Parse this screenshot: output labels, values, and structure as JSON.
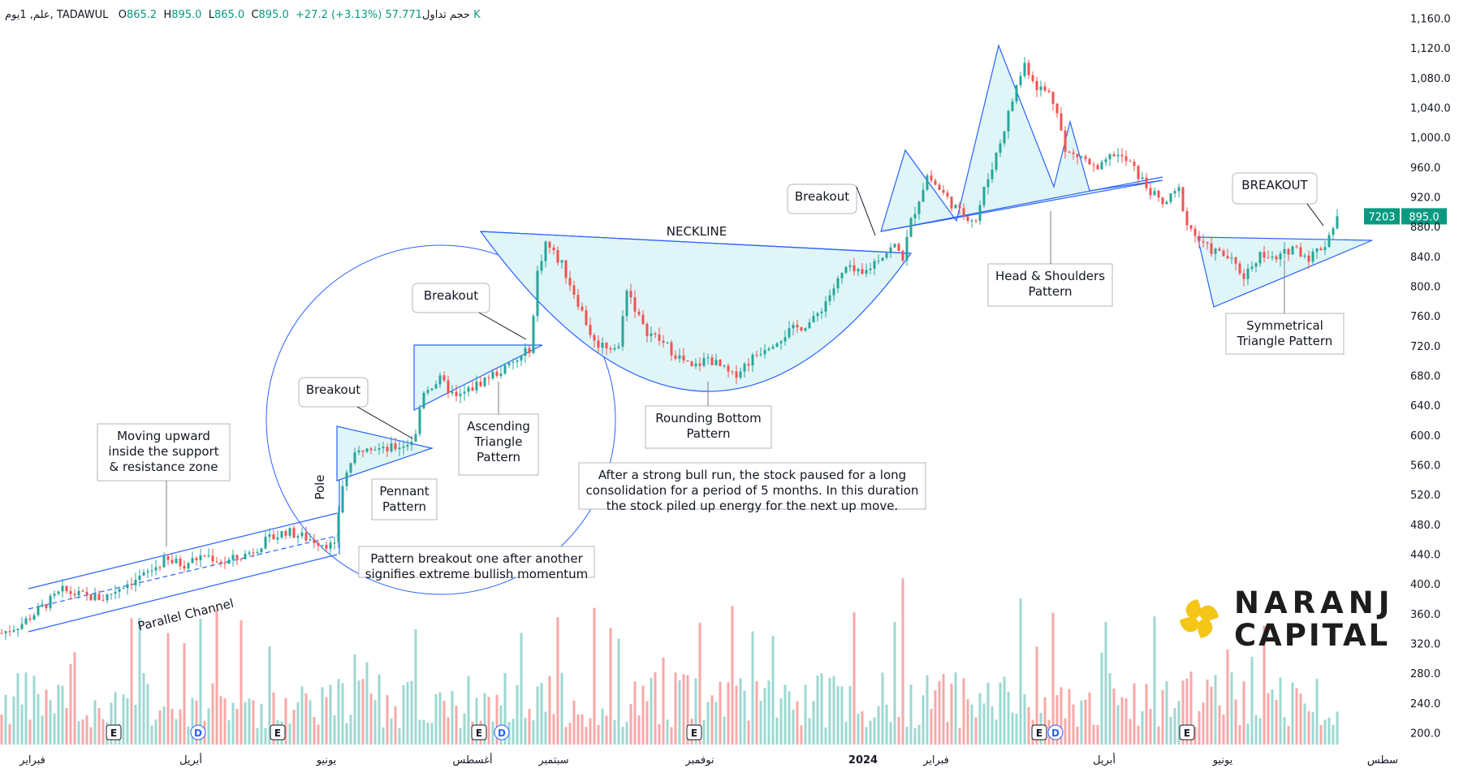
{
  "header": {
    "symbol": "علم, 1يوم, TADAWUL",
    "open_label": "O",
    "open": "865.2",
    "high_label": "H",
    "high": "895.0",
    "low_label": "L",
    "low": "865.0",
    "close_label": "C",
    "close": "895.0",
    "change": "+27.2 (+3.13%)",
    "volume_label": "حجم تداول",
    "volume": "57.771 K"
  },
  "colors": {
    "up": "#26a69a",
    "down": "#ef5350",
    "vol_up": "#9ed8d2",
    "vol_down": "#f7a9a7",
    "line": "#2962ff",
    "fill": "#e0f5f7",
    "badge": "#089981",
    "logo_accent": "#f5c518"
  },
  "chart_data": {
    "type": "candlestick",
    "title": "TADAWUL daily",
    "y_axis": {
      "min": 200,
      "max": 1160,
      "ticks": [
        "1,160.0",
        "1,120.0",
        "1,080.0",
        "1,040.0",
        "1,000.0",
        "960.0",
        "920.0",
        "880.0",
        "840.0",
        "800.0",
        "760.0",
        "720.0",
        "680.0",
        "640.0",
        "600.0",
        "560.0",
        "520.0",
        "480.0",
        "440.0",
        "400.0",
        "360.0",
        "320.0",
        "280.0",
        "240.0",
        "200.0"
      ]
    },
    "x_axis": {
      "labels": [
        "فبراير",
        "أبريل",
        "يونيو",
        "أغسطس",
        "سبتمبر",
        "نوفمبر",
        "2024",
        "فبراير",
        "أبريل",
        "يونيو",
        "سطس"
      ]
    },
    "last_price": "895.0",
    "last_volume_badge": "7203",
    "price_path": [
      [
        0,
        335
      ],
      [
        25,
        348
      ],
      [
        50,
        370
      ],
      [
        75,
        392
      ],
      [
        100,
        385
      ],
      [
        125,
        382
      ],
      [
        150,
        400
      ],
      [
        175,
        412
      ],
      [
        200,
        432
      ],
      [
        225,
        428
      ],
      [
        250,
        440
      ],
      [
        275,
        430
      ],
      [
        300,
        440
      ],
      [
        325,
        458
      ],
      [
        350,
        472
      ],
      [
        375,
        463
      ],
      [
        400,
        455
      ],
      [
        410,
        450
      ],
      [
        418,
        528
      ],
      [
        430,
        565
      ],
      [
        450,
        590
      ],
      [
        470,
        580
      ],
      [
        500,
        590
      ],
      [
        510,
        600
      ],
      [
        518,
        660
      ],
      [
        540,
        675
      ],
      [
        560,
        650
      ],
      [
        580,
        665
      ],
      [
        600,
        680
      ],
      [
        620,
        690
      ],
      [
        640,
        705
      ],
      [
        650,
        718
      ],
      [
        655,
        760
      ],
      [
        660,
        820
      ],
      [
        670,
        860
      ],
      [
        690,
        830
      ],
      [
        710,
        780
      ],
      [
        730,
        725
      ],
      [
        760,
        718
      ],
      [
        770,
        800
      ],
      [
        790,
        745
      ],
      [
        820,
        720
      ],
      [
        850,
        690
      ],
      [
        870,
        705
      ],
      [
        900,
        680
      ],
      [
        940,
        720
      ],
      [
        970,
        740
      ],
      [
        1000,
        755
      ],
      [
        1020,
        790
      ],
      [
        1040,
        825
      ],
      [
        1060,
        815
      ],
      [
        1080,
        840
      ],
      [
        1100,
        855
      ],
      [
        1110,
        840
      ],
      [
        1120,
        888
      ],
      [
        1140,
        950
      ],
      [
        1160,
        925
      ],
      [
        1180,
        900
      ],
      [
        1200,
        890
      ],
      [
        1210,
        930
      ],
      [
        1230,
        995
      ],
      [
        1250,
        1070
      ],
      [
        1260,
        1100
      ],
      [
        1275,
        1070
      ],
      [
        1290,
        1060
      ],
      [
        1300,
        1040
      ],
      [
        1310,
        980
      ],
      [
        1330,
        975
      ],
      [
        1350,
        955
      ],
      [
        1370,
        980
      ],
      [
        1390,
        965
      ],
      [
        1410,
        935
      ],
      [
        1430,
        910
      ],
      [
        1450,
        930
      ],
      [
        1460,
        885
      ],
      [
        1480,
        855
      ],
      [
        1510,
        840
      ],
      [
        1530,
        815
      ],
      [
        1550,
        845
      ],
      [
        1570,
        835
      ],
      [
        1590,
        855
      ],
      [
        1610,
        840
      ],
      [
        1630,
        858
      ],
      [
        1645,
        895
      ]
    ],
    "annotations": [
      "Moving upward",
      "inside the support",
      "& resistance zone",
      "Parallel Channel",
      "Pole",
      "Breakout",
      "Pennant",
      "Pattern",
      "Ascending",
      "Triangle",
      "Pattern",
      "Breakout",
      "Pattern breakout one after another",
      "signifies extreme bullish momentum",
      "NECKLINE",
      "Rounding Bottom",
      "Pattern",
      "After a strong bull run, the stock paused for a long",
      "consolidation for a period of 5 months. In this duration",
      "the stock piled up energy for the next up move.",
      "Breakout",
      "Head & Shoulders",
      "Pattern",
      "BREAKOUT",
      "Symmetrical",
      "Triangle Pattern"
    ],
    "event_markers": [
      "E",
      "D",
      "E",
      "E",
      "D",
      "E",
      "E",
      "D",
      "E"
    ]
  },
  "logo": {
    "line1": "NARANJ",
    "line2": "CAPITAL"
  }
}
